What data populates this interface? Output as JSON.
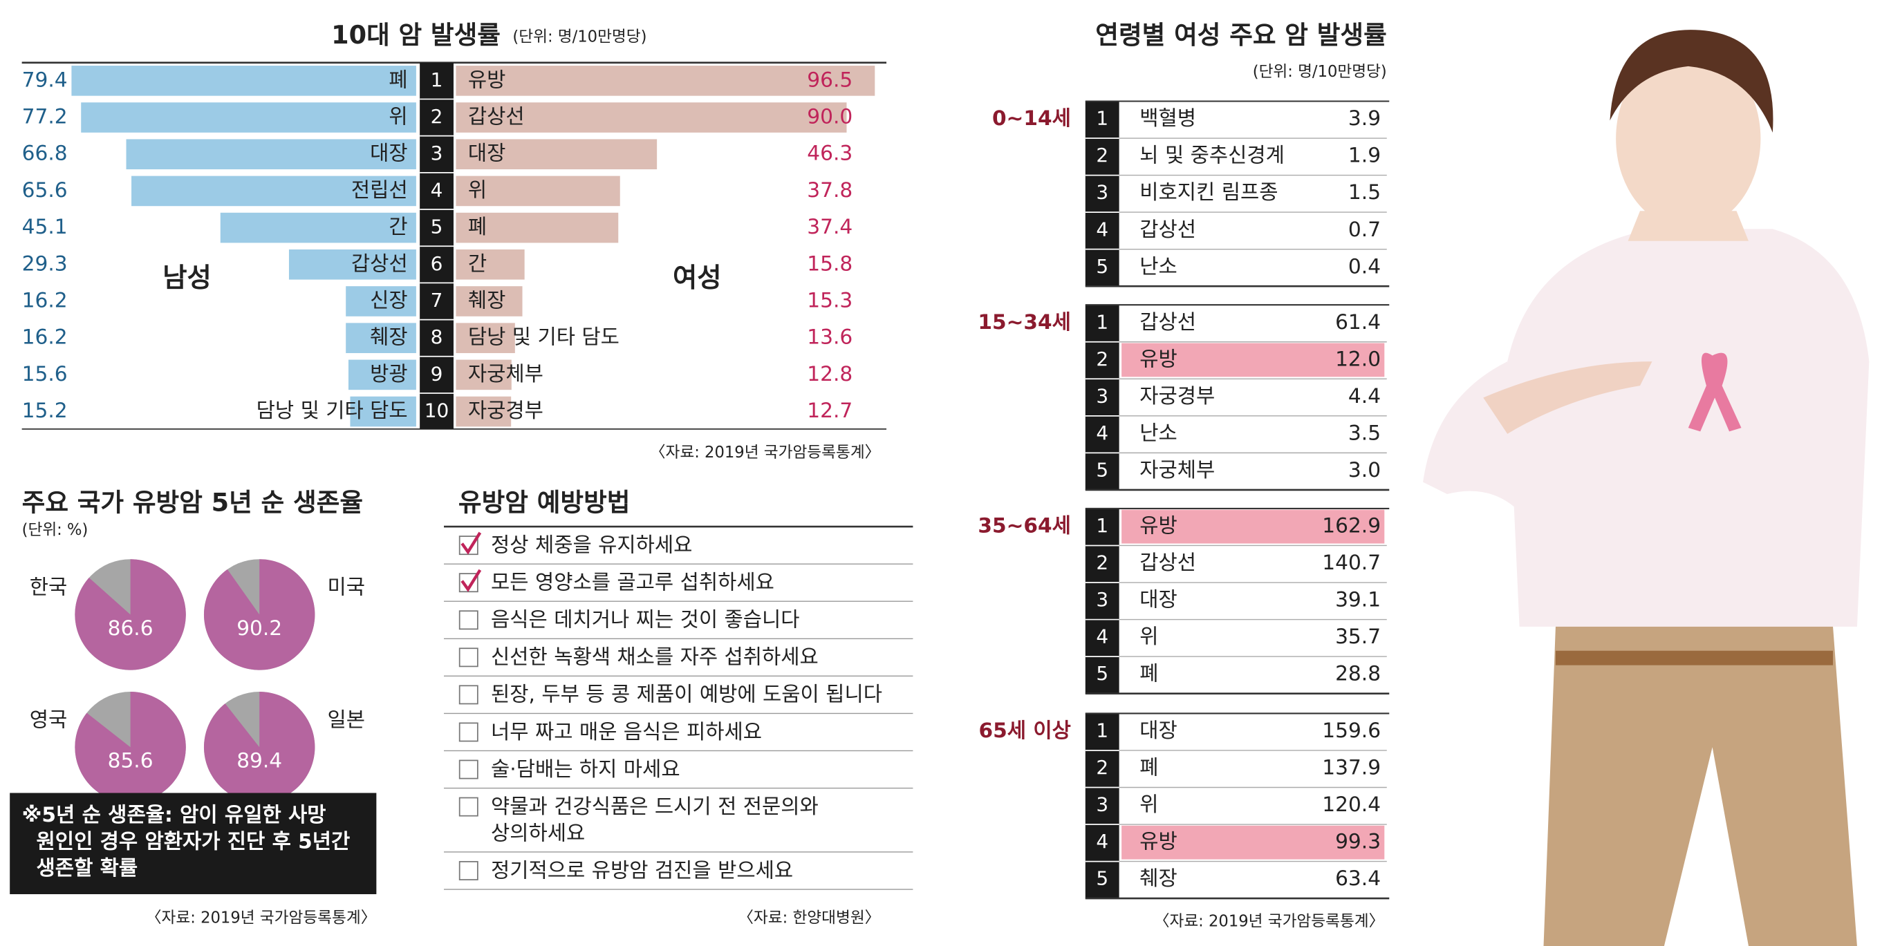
{
  "chart_data": [
    {
      "type": "butterfly-bar",
      "title": "10대 암 발생률",
      "subtitle": "(단위: 명/10만명당)",
      "ranks": [
        "1",
        "2",
        "3",
        "4",
        "5",
        "6",
        "7",
        "8",
        "9",
        "10"
      ],
      "xlim": [
        0,
        100
      ],
      "series": [
        {
          "name": "남성",
          "color": "#9ccbe6",
          "label_color": "#1f5f8a",
          "categories": [
            "폐",
            "위",
            "대장",
            "전립선",
            "간",
            "갑상선",
            "신장",
            "췌장",
            "방광",
            "담낭 및 기타 담도"
          ],
          "values": [
            79.4,
            77.2,
            66.8,
            65.6,
            45.1,
            29.3,
            16.2,
            16.2,
            15.6,
            15.2
          ]
        },
        {
          "name": "여성",
          "color": "#dcbdb4",
          "label_color": "#c0245a",
          "categories": [
            "유방",
            "갑상선",
            "대장",
            "위",
            "폐",
            "간",
            "췌장",
            "담낭 및 기타 담도",
            "자궁체부",
            "자궁경부"
          ],
          "values": [
            96.5,
            90.0,
            46.3,
            37.8,
            37.4,
            15.8,
            15.3,
            13.6,
            12.8,
            12.7
          ],
          "value_labels": [
            "96.5",
            "90.0",
            "46.3",
            "37.8",
            "37.4",
            "15.8",
            "15.3",
            "13.6",
            "12.8",
            "12.7"
          ]
        }
      ],
      "source": "〈자료: 2019년 국가암등록통계〉"
    },
    {
      "type": "pie",
      "title": "주요 국가 유방암 5년 순 생존율",
      "subtitle": "(단위: %)",
      "categories": [
        "한국",
        "미국",
        "영국",
        "일본"
      ],
      "values": [
        86.6,
        90.2,
        85.6,
        89.4
      ],
      "color": "#b5659f",
      "rest_color": "#a6a6a6",
      "note_lines": [
        "※5년 순 생존율: 암이 유일한 사망",
        "원인인 경우 암환자가 진단 후 5년간",
        "생존할 확률"
      ],
      "source": "〈자료: 2019년 국가암등록통계〉"
    }
  ],
  "prevention": {
    "title": "유방암 예방방법",
    "items": [
      {
        "lines": [
          "정상 체중을 유지하세요"
        ],
        "checked": true
      },
      {
        "lines": [
          "모든 영양소를 골고루 섭취하세요"
        ],
        "checked": true
      },
      {
        "lines": [
          "음식은 데치거나 찌는 것이 좋습니다"
        ],
        "checked": false
      },
      {
        "lines": [
          "신선한 녹황색 채소를 자주 섭취하세요"
        ],
        "checked": false
      },
      {
        "lines": [
          "된장, 두부 등 콩 제품이 예방에 도움이 됩니다"
        ],
        "checked": false
      },
      {
        "lines": [
          "너무 짜고 매운 음식은 피하세요"
        ],
        "checked": false
      },
      {
        "lines": [
          "술·담배는 하지 마세요"
        ],
        "checked": false
      },
      {
        "lines": [
          "약물과 건강식품은 드시기 전 전문의와",
          "상의하세요"
        ],
        "checked": false
      },
      {
        "lines": [
          "정기적으로 유방암 검진을 받으세요"
        ],
        "checked": false
      }
    ],
    "source": "〈자료: 한양대병원〉"
  },
  "age_table": {
    "title": "연령별 여성 주요 암 발생률",
    "unit": "(단위: 명/10만명당)",
    "groups": [
      {
        "label": "0~14세",
        "rows": [
          {
            "rank": "1",
            "name": "백혈병",
            "value": "3.9",
            "highlight": false
          },
          {
            "rank": "2",
            "name": "뇌 및 중추신경계",
            "value": "1.9",
            "highlight": false
          },
          {
            "rank": "3",
            "name": "비호지킨 림프종",
            "value": "1.5",
            "highlight": false
          },
          {
            "rank": "4",
            "name": "갑상선",
            "value": "0.7",
            "highlight": false
          },
          {
            "rank": "5",
            "name": "난소",
            "value": "0.4",
            "highlight": false
          }
        ]
      },
      {
        "label": "15~34세",
        "rows": [
          {
            "rank": "1",
            "name": "갑상선",
            "value": "61.4",
            "highlight": false
          },
          {
            "rank": "2",
            "name": "유방",
            "value": "12.0",
            "highlight": true
          },
          {
            "rank": "3",
            "name": "자궁경부",
            "value": "4.4",
            "highlight": false
          },
          {
            "rank": "4",
            "name": "난소",
            "value": "3.5",
            "highlight": false
          },
          {
            "rank": "5",
            "name": "자궁체부",
            "value": "3.0",
            "highlight": false
          }
        ]
      },
      {
        "label": "35~64세",
        "rows": [
          {
            "rank": "1",
            "name": "유방",
            "value": "162.9",
            "highlight": true
          },
          {
            "rank": "2",
            "name": "갑상선",
            "value": "140.7",
            "highlight": false
          },
          {
            "rank": "3",
            "name": "대장",
            "value": "39.1",
            "highlight": false
          },
          {
            "rank": "4",
            "name": "위",
            "value": "35.7",
            "highlight": false
          },
          {
            "rank": "5",
            "name": "폐",
            "value": "28.8",
            "highlight": false
          }
        ]
      },
      {
        "label": "65세 이상",
        "rows": [
          {
            "rank": "1",
            "name": "대장",
            "value": "159.6",
            "highlight": false
          },
          {
            "rank": "2",
            "name": "폐",
            "value": "137.9",
            "highlight": false
          },
          {
            "rank": "3",
            "name": "위",
            "value": "120.4",
            "highlight": false
          },
          {
            "rank": "4",
            "name": "유방",
            "value": "99.3",
            "highlight": true
          },
          {
            "rank": "5",
            "name": "췌장",
            "value": "63.4",
            "highlight": false
          }
        ]
      }
    ],
    "source": "〈자료: 2019년 국가암등록통계〉"
  }
}
